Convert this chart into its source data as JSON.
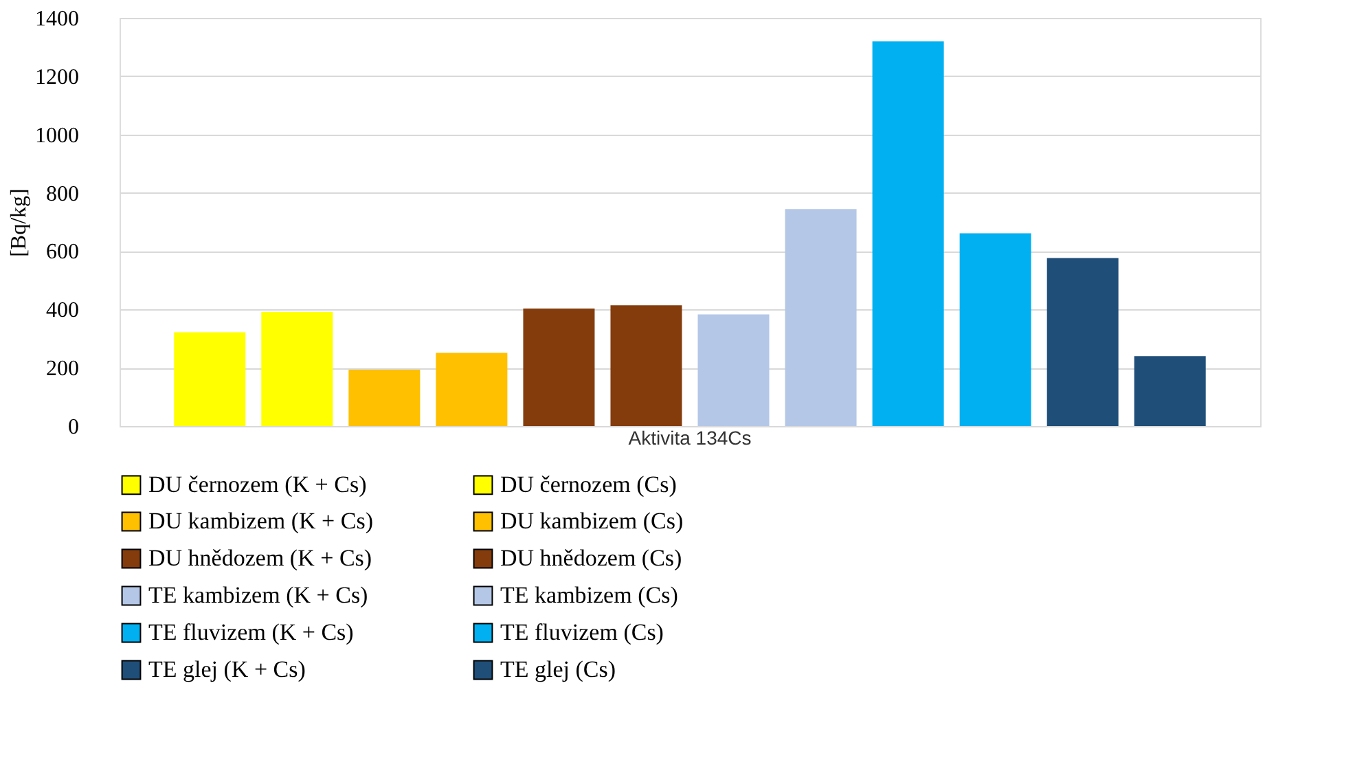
{
  "chart_data": {
    "type": "bar",
    "ylabel": "[Bq/kg]",
    "categories": [
      "Aktivita 134Cs"
    ],
    "series": [
      {
        "name": "DU černozem (K + Cs)",
        "color": "#ffff00",
        "values": [
          322
        ]
      },
      {
        "name": "DU černozem (Cs)",
        "color": "#ffff00",
        "values": [
          391
        ]
      },
      {
        "name": " DU kambizem (K + Cs)",
        "color": "#ffc000",
        "values": [
          193
        ]
      },
      {
        "name": " DU kambizem (Cs)",
        "color": "#ffc000",
        "values": [
          251
        ]
      },
      {
        "name": " DU hnědozem (K + Cs)",
        "color": "#843c0c",
        "values": [
          403
        ]
      },
      {
        "name": " DU hnědozem (Cs)",
        "color": "#843c0c",
        "values": [
          414
        ]
      },
      {
        "name": "TE kambizem (K + Cs)",
        "color": "#b4c7e7",
        "values": [
          383
        ]
      },
      {
        "name": "TE kambizem (Cs)",
        "color": "#b4c7e7",
        "values": [
          744
        ]
      },
      {
        "name": "TE fluvizem (K + Cs)",
        "color": "#00b0f0",
        "values": [
          1319
        ]
      },
      {
        "name": "TE fluvizem (Cs)",
        "color": "#00b0f0",
        "values": [
          661
        ]
      },
      {
        "name": "TE glej (K + Cs)",
        "color": "#1f4e79",
        "values": [
          576
        ]
      },
      {
        "name": "TE glej (Cs)",
        "color": "#1f4e79",
        "values": [
          240
        ]
      }
    ],
    "ylim": [
      0,
      1400
    ],
    "yticks": [
      0,
      200,
      400,
      600,
      800,
      1000,
      1200,
      1400
    ],
    "grid": "y",
    "legend": "bottom"
  }
}
